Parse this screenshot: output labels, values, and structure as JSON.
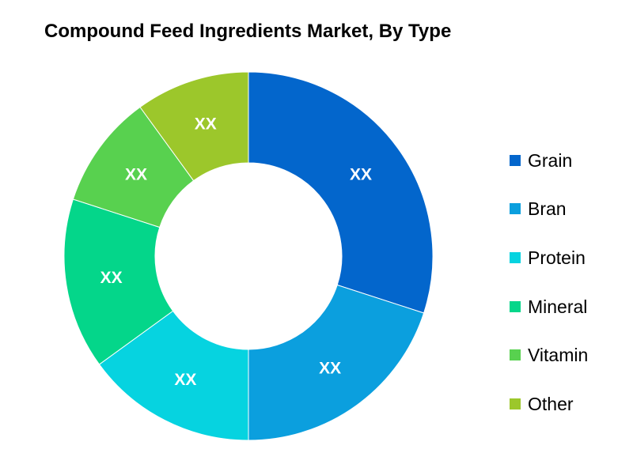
{
  "chart_data": {
    "type": "pie",
    "donut": true,
    "title": "Compound Feed Ingredients Market, By Type",
    "categories": [
      "Grain",
      "Bran",
      "Protein",
      "Mineral",
      "Vitamin",
      "Other"
    ],
    "values": [
      30,
      20,
      15,
      15,
      10,
      10
    ],
    "data_labels": [
      "XX",
      "XX",
      "XX",
      "XX",
      "XX",
      "XX"
    ],
    "colors": [
      "#0366cc",
      "#0b9fde",
      "#06d3e0",
      "#04d68a",
      "#58d14f",
      "#9cc72b"
    ],
    "legend": {
      "position": "right",
      "entries": [
        "Grain",
        "Bran",
        "Protein",
        "Mineral",
        "Vitamin",
        "Other"
      ]
    }
  }
}
